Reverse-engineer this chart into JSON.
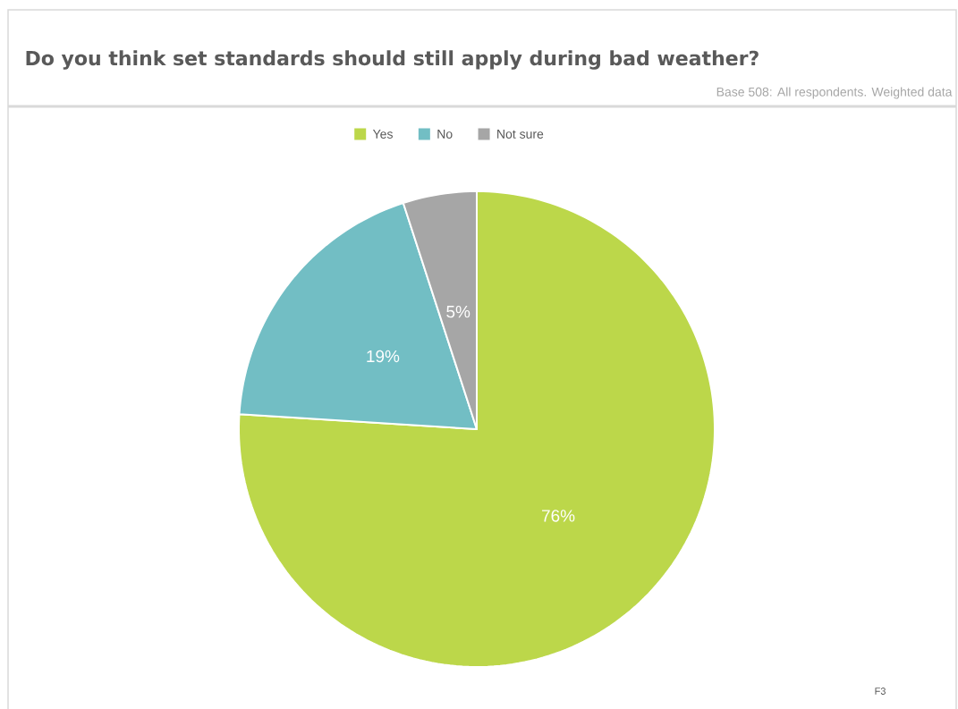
{
  "chart_data": {
    "type": "pie",
    "title": "Do you think set standards should still apply during bad weather?",
    "annotations": [
      "Base 508: All respondents. Weighted data",
      "F3"
    ],
    "categories": [
      "Yes",
      "No",
      "Not sure"
    ],
    "values": [
      76,
      19,
      5
    ],
    "colors": [
      "#bcd74a",
      "#72bec4",
      "#a6a6a6"
    ],
    "value_labels": [
      "76%",
      "19%",
      "5%"
    ],
    "legend": "top"
  }
}
